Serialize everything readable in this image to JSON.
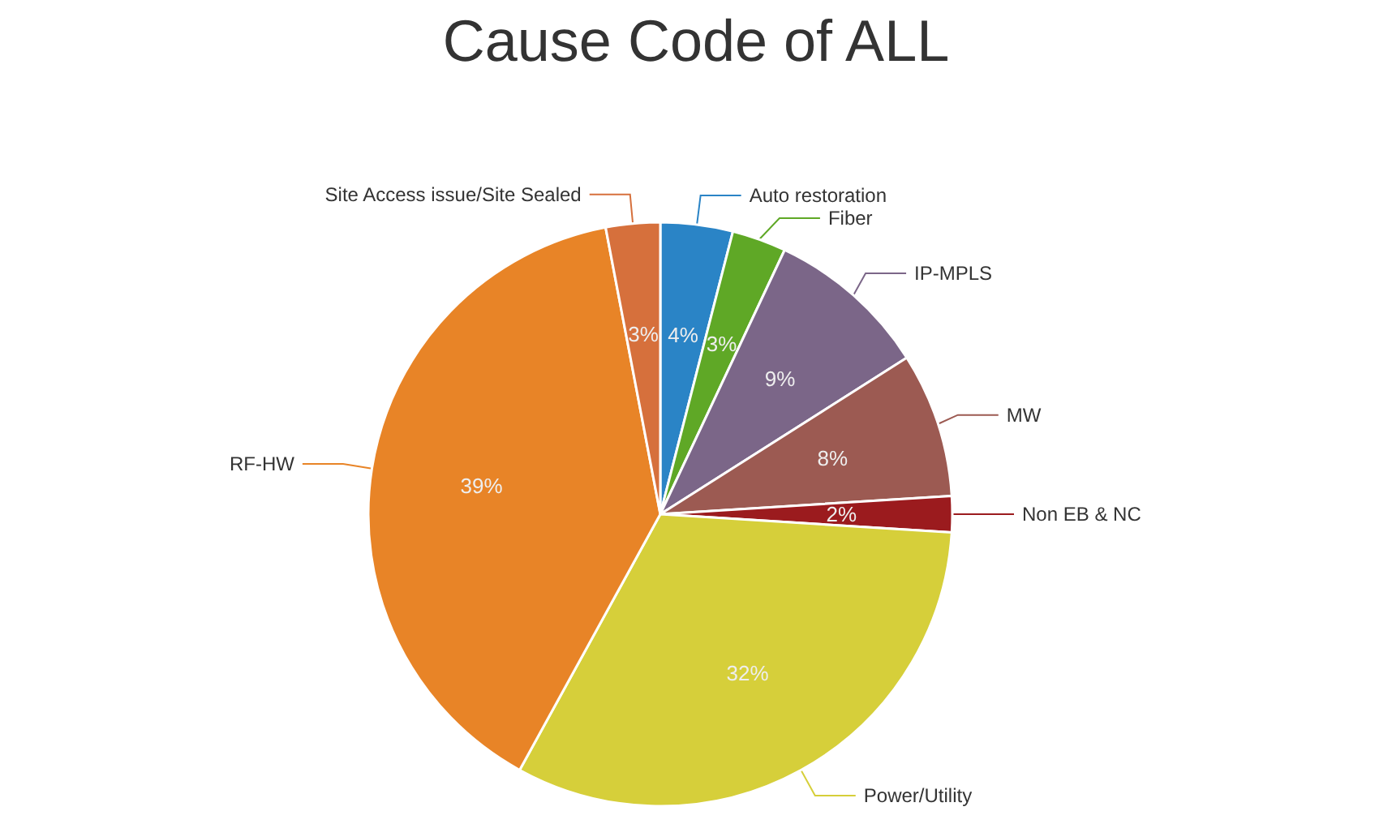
{
  "chart_data": {
    "type": "pie",
    "title": "Cause Code of ALL",
    "categories": [
      "Auto restoration",
      "Fiber",
      "IP-MPLS",
      "MW",
      "Non EB & NC",
      "Power/Utility",
      "RF-HW",
      "Site Access issue/Site Sealed"
    ],
    "values": [
      4,
      3,
      9,
      8,
      2,
      32,
      39,
      3
    ],
    "colors": [
      "#2a84c6",
      "#5fa826",
      "#7b6688",
      "#9c5a52",
      "#9b1b1e",
      "#d6cf3a",
      "#e88427",
      "#d6703c"
    ],
    "value_labels": [
      "4%",
      "3%",
      "9%",
      "8%",
      "2%",
      "32%",
      "39%",
      "3%"
    ],
    "legend": false
  }
}
